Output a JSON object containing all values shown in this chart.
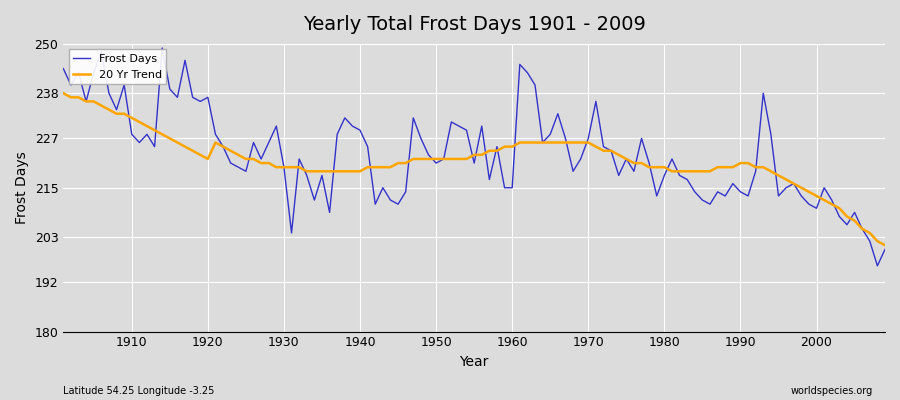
{
  "title": "Yearly Total Frost Days 1901 - 2009",
  "xlabel": "Year",
  "ylabel": "Frost Days",
  "subtitle": "Latitude 54.25 Longitude -3.25",
  "watermark": "worldspecies.org",
  "bg_color": "#dcdcdc",
  "plot_bg_color": "#dcdcdc",
  "line_color": "#3333cc",
  "trend_color": "#ffa500",
  "ylim": [
    180,
    250
  ],
  "yticks": [
    180,
    192,
    203,
    215,
    227,
    238,
    250
  ],
  "years": [
    1901,
    1902,
    1903,
    1904,
    1905,
    1906,
    1907,
    1908,
    1909,
    1910,
    1911,
    1912,
    1913,
    1914,
    1915,
    1916,
    1917,
    1918,
    1919,
    1920,
    1921,
    1922,
    1923,
    1924,
    1925,
    1926,
    1927,
    1928,
    1929,
    1930,
    1931,
    1932,
    1933,
    1934,
    1935,
    1936,
    1937,
    1938,
    1939,
    1940,
    1941,
    1942,
    1943,
    1944,
    1945,
    1946,
    1947,
    1948,
    1949,
    1950,
    1951,
    1952,
    1953,
    1954,
    1955,
    1956,
    1957,
    1958,
    1959,
    1960,
    1961,
    1962,
    1963,
    1964,
    1965,
    1966,
    1967,
    1968,
    1969,
    1970,
    1971,
    1972,
    1973,
    1974,
    1975,
    1976,
    1977,
    1978,
    1979,
    1980,
    1981,
    1982,
    1983,
    1984,
    1985,
    1986,
    1987,
    1988,
    1989,
    1990,
    1991,
    1992,
    1993,
    1994,
    1995,
    1996,
    1997,
    1998,
    1999,
    2000,
    2001,
    2002,
    2003,
    2004,
    2005,
    2006,
    2007,
    2008,
    2009
  ],
  "frost_days": [
    244,
    240,
    243,
    236,
    243,
    248,
    238,
    234,
    240,
    228,
    226,
    228,
    225,
    249,
    239,
    237,
    246,
    237,
    236,
    237,
    228,
    225,
    221,
    220,
    219,
    226,
    222,
    226,
    230,
    220,
    204,
    222,
    218,
    212,
    218,
    209,
    228,
    232,
    230,
    229,
    225,
    211,
    215,
    212,
    211,
    214,
    232,
    227,
    223,
    221,
    222,
    231,
    230,
    229,
    221,
    230,
    217,
    225,
    215,
    215,
    245,
    243,
    240,
    226,
    228,
    233,
    227,
    219,
    222,
    227,
    236,
    225,
    224,
    218,
    222,
    219,
    227,
    221,
    213,
    218,
    222,
    218,
    217,
    214,
    212,
    211,
    214,
    213,
    216,
    214,
    213,
    219,
    238,
    228,
    213,
    215,
    216,
    213,
    211,
    210,
    215,
    212,
    208,
    206,
    209,
    205,
    202,
    196,
    200
  ],
  "trend_values": [
    238,
    237,
    237,
    236,
    236,
    235,
    234,
    233,
    233,
    232,
    231,
    230,
    229,
    228,
    227,
    226,
    225,
    224,
    223,
    222,
    226,
    225,
    224,
    223,
    222,
    222,
    221,
    221,
    220,
    220,
    220,
    220,
    219,
    219,
    219,
    219,
    219,
    219,
    219,
    219,
    220,
    220,
    220,
    220,
    221,
    221,
    222,
    222,
    222,
    222,
    222,
    222,
    222,
    222,
    223,
    223,
    224,
    224,
    225,
    225,
    226,
    226,
    226,
    226,
    226,
    226,
    226,
    226,
    226,
    226,
    225,
    224,
    224,
    223,
    222,
    221,
    221,
    220,
    220,
    220,
    219,
    219,
    219,
    219,
    219,
    219,
    220,
    220,
    220,
    221,
    221,
    220,
    220,
    219,
    218,
    217,
    216,
    215,
    214,
    213,
    212,
    211,
    210,
    208,
    207,
    205,
    204,
    202,
    201
  ]
}
